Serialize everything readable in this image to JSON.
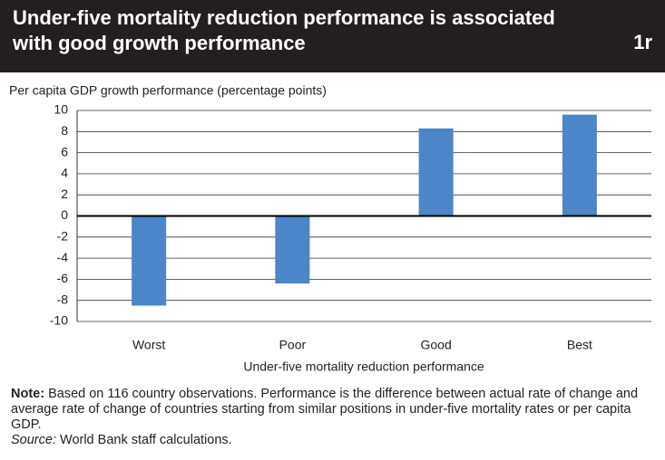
{
  "chart_data": {
    "type": "bar",
    "title": "Under-five mortality reduction performance is associated with good growth performance",
    "figure_label": "1r",
    "y_axis_label": "Per capita GDP growth performance (percentage points)",
    "x_axis_label": "Under-five mortality reduction performance",
    "categories": [
      "Worst",
      "Poor",
      "Good",
      "Best"
    ],
    "values": [
      -8.5,
      -6.4,
      8.3,
      9.6
    ],
    "color": "#4a86c8",
    "ylim": [
      -10,
      10
    ],
    "yticks": [
      -10,
      -8,
      -6,
      -4,
      -2,
      0,
      2,
      4,
      6,
      8,
      10
    ],
    "grid": true,
    "note_label": "Note:",
    "note": "Based on 116 country observations. Performance is the difference between actual rate of change and average rate of change of countries starting from similar positions in under-five mortality rates or per capita GDP.",
    "source_label": "Source:",
    "source": "World Bank staff calculations."
  }
}
